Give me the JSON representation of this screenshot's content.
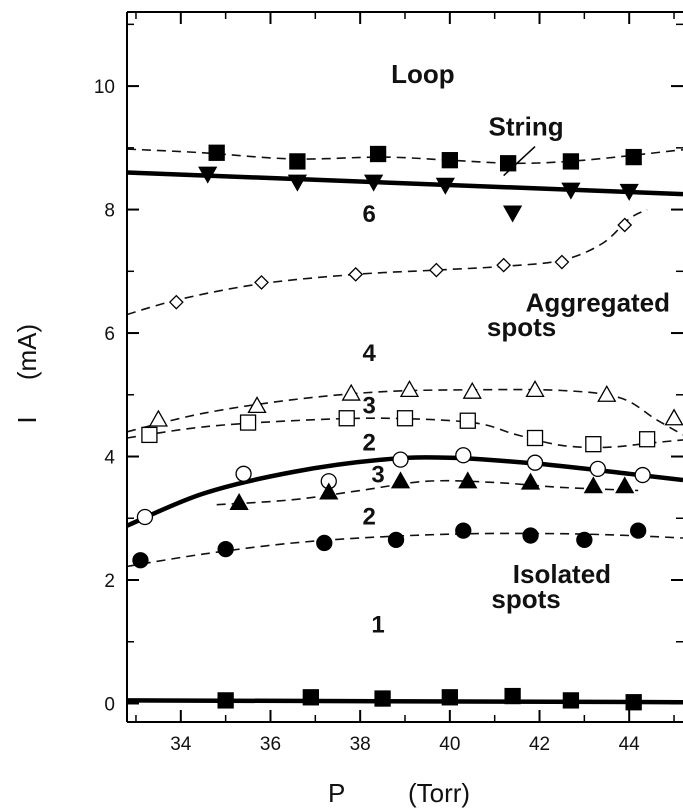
{
  "chart_data": {
    "type": "scatter",
    "title": "",
    "xlabel": "P",
    "xunit": "(Torr)",
    "ylabel": "I",
    "yunit": "(mA)",
    "xlim": [
      32.8,
      45.2
    ],
    "ylim": [
      -0.3,
      11.2
    ],
    "xticks": [
      34,
      36,
      38,
      40,
      42,
      44
    ],
    "yticks": [
      0,
      2,
      4,
      6,
      8,
      10
    ],
    "grid": false,
    "legend": "none",
    "region_labels": [
      {
        "text": "Loop",
        "x": 39.4,
        "y": 10.05
      },
      {
        "text": "String",
        "x": 41.7,
        "y": 9.2
      },
      {
        "text": "Aggregated",
        "x": 43.3,
        "y": 6.35
      },
      {
        "text": "spots",
        "x": 41.6,
        "y": 5.95
      },
      {
        "text": "Isolated",
        "x": 42.5,
        "y": 1.95
      },
      {
        "text": "spots",
        "x": 41.7,
        "y": 1.55
      }
    ],
    "mode_labels": [
      {
        "text": "6",
        "x": 38.2,
        "y": 7.8
      },
      {
        "text": "4",
        "x": 38.2,
        "y": 5.55
      },
      {
        "text": "3",
        "x": 38.2,
        "y": 4.7
      },
      {
        "text": "2",
        "x": 38.2,
        "y": 4.1
      },
      {
        "text": "3",
        "x": 38.4,
        "y": 3.58
      },
      {
        "text": "2",
        "x": 38.2,
        "y": 2.9
      },
      {
        "text": "1",
        "x": 38.4,
        "y": 1.15
      }
    ],
    "series": [
      {
        "marker": "filled-square",
        "curve": "dashed",
        "x": [
          34.8,
          36.6,
          38.4,
          40.0,
          41.3,
          42.7,
          44.1
        ],
        "y": [
          8.92,
          8.78,
          8.9,
          8.8,
          8.75,
          8.78,
          8.85
        ]
      },
      {
        "marker": "filled-triangle-down",
        "x": [
          34.6,
          36.6,
          38.3,
          39.9,
          41.4,
          42.7,
          44.0
        ],
        "y": [
          8.58,
          8.45,
          8.45,
          8.4,
          7.95,
          8.32,
          8.3
        ]
      },
      {
        "marker": "open-diamond",
        "curve": "dashed",
        "x": [
          33.9,
          35.8,
          37.9,
          39.7,
          41.2,
          42.5,
          43.9
        ],
        "y": [
          6.5,
          6.82,
          6.95,
          7.02,
          7.1,
          7.15,
          7.75
        ]
      },
      {
        "marker": "open-triangle-up",
        "curve": "dashed",
        "x": [
          33.5,
          35.7,
          37.8,
          39.1,
          40.5,
          41.9,
          43.5,
          45.0
        ],
        "y": [
          4.6,
          4.82,
          5.02,
          5.08,
          5.05,
          5.08,
          5.0,
          4.62
        ]
      },
      {
        "marker": "open-square",
        "curve": "dashed",
        "x": [
          33.3,
          35.5,
          37.7,
          39.0,
          40.4,
          41.9,
          43.2,
          44.4
        ],
        "y": [
          4.35,
          4.55,
          4.62,
          4.62,
          4.58,
          4.3,
          4.2,
          4.28
        ]
      },
      {
        "marker": "open-circle",
        "x": [
          33.2,
          35.4,
          37.3,
          38.9,
          40.3,
          41.9,
          43.3,
          44.3
        ],
        "y": [
          3.02,
          3.72,
          3.6,
          3.95,
          4.02,
          3.9,
          3.8,
          3.7
        ]
      },
      {
        "marker": "filled-triangle-up",
        "curve": "dashed",
        "x": [
          35.3,
          37.3,
          38.9,
          40.4,
          41.8,
          43.2,
          43.9
        ],
        "y": [
          3.25,
          3.42,
          3.6,
          3.6,
          3.58,
          3.52,
          3.52
        ]
      },
      {
        "marker": "filled-circle",
        "curve": "dashed",
        "x": [
          33.1,
          35.0,
          37.2,
          38.8,
          40.3,
          41.8,
          43.0,
          44.2
        ],
        "y": [
          2.32,
          2.5,
          2.6,
          2.65,
          2.8,
          2.72,
          2.65,
          2.8
        ]
      },
      {
        "marker": "filled-square",
        "x": [
          35.0,
          36.9,
          38.5,
          40.0,
          41.4,
          42.7,
          44.1
        ],
        "y": [
          0.05,
          0.1,
          0.08,
          0.1,
          0.12,
          0.05,
          0.02
        ]
      }
    ],
    "boundaries": [
      {
        "style": "solid",
        "x": [
          32.8,
          45.2
        ],
        "y": [
          8.6,
          8.25
        ]
      },
      {
        "style": "solid",
        "x": [
          32.8,
          34.5,
          36.5,
          38.5,
          40.0,
          42.0,
          44.0,
          45.2
        ],
        "y": [
          2.88,
          3.4,
          3.75,
          3.95,
          3.98,
          3.88,
          3.72,
          3.62
        ]
      },
      {
        "style": "solid",
        "x": [
          32.8,
          45.2
        ],
        "y": [
          0.05,
          0.02
        ]
      }
    ],
    "dashed_fits": [
      {
        "x": [
          32.8,
          34.5,
          36.5,
          38.5,
          40.0,
          41.5,
          43.0,
          45.2
        ],
        "y": [
          8.98,
          8.92,
          8.82,
          8.85,
          8.8,
          8.75,
          8.8,
          8.97
        ]
      },
      {
        "x": [
          32.8,
          34.0,
          35.8,
          37.9,
          39.7,
          41.2,
          42.5,
          43.4,
          44.0,
          44.4
        ],
        "y": [
          6.3,
          6.55,
          6.8,
          6.95,
          7.02,
          7.08,
          7.18,
          7.45,
          7.85,
          8.0
        ]
      },
      {
        "x": [
          32.8,
          34.5,
          36.5,
          38.5,
          40.5,
          42.5,
          43.8,
          44.6,
          45.2
        ],
        "y": [
          4.4,
          4.7,
          4.92,
          5.05,
          5.08,
          5.07,
          4.95,
          4.6,
          4.35
        ]
      },
      {
        "x": [
          32.8,
          34.5,
          36.5,
          38.5,
          40.5,
          41.5,
          42.5,
          43.5,
          44.5,
          45.2
        ],
        "y": [
          4.3,
          4.48,
          4.58,
          4.62,
          4.55,
          4.35,
          4.18,
          4.15,
          4.22,
          4.27
        ]
      },
      {
        "x": [
          34.8,
          36.5,
          38.0,
          39.5,
          41.0,
          42.5,
          44.2
        ],
        "y": [
          3.22,
          3.3,
          3.45,
          3.6,
          3.58,
          3.5,
          3.45
        ]
      },
      {
        "x": [
          32.8,
          34.5,
          36.5,
          38.5,
          40.5,
          42.5,
          44.0,
          45.2
        ],
        "y": [
          2.22,
          2.42,
          2.6,
          2.7,
          2.75,
          2.75,
          2.72,
          2.68
        ]
      }
    ]
  }
}
